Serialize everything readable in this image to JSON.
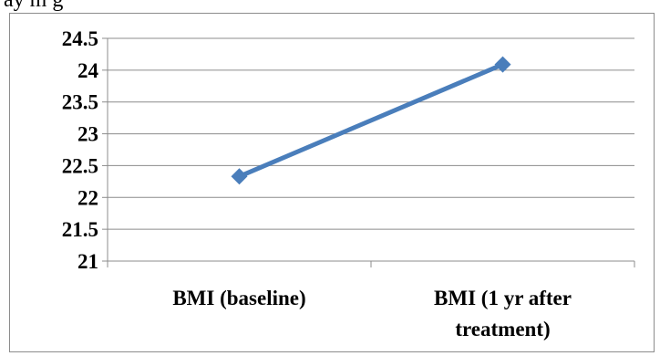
{
  "caption_fragment": "ay       m     g",
  "chart_data": {
    "type": "line",
    "title": "",
    "xlabel": "",
    "ylabel": "",
    "categories": [
      "BMI (baseline)",
      "BMI (1 yr after treatment)"
    ],
    "category_label_lines": [
      [
        "BMI (baseline)"
      ],
      [
        "BMI (1 yr after",
        "treatment)"
      ]
    ],
    "series": [
      {
        "values": [
          22.33,
          24.09
        ]
      }
    ],
    "ylim": [
      21,
      24.5
    ],
    "yticks": [
      "21",
      "21.5",
      "22",
      "22.5",
      "23",
      "23.5",
      "24",
      "24.5"
    ],
    "grid": true,
    "legend": "none",
    "colors": {
      "line": "#4a7ebb",
      "grid": "#8c8c8c",
      "axis": "#8c8c8c"
    }
  }
}
